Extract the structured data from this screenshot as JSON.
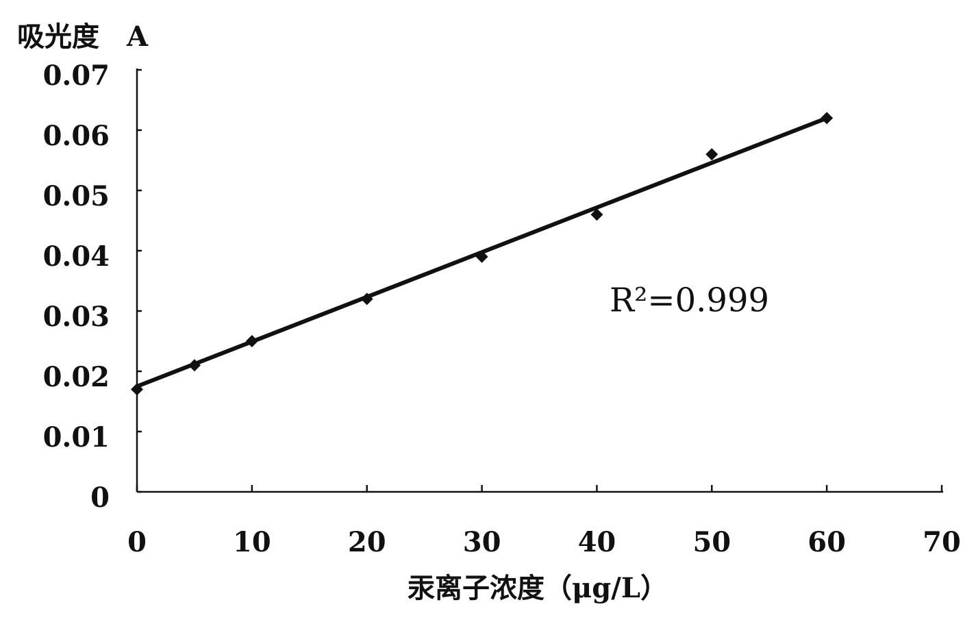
{
  "chart_data": {
    "type": "scatter",
    "y_label": "吸光度　A",
    "x_label": "汞离子浓度（μg/L）",
    "annotation": "R²=0.999",
    "x": [
      0,
      5,
      10,
      20,
      30,
      40,
      50,
      60
    ],
    "series": [
      {
        "color": "#111111",
        "values": [
          0.017,
          0.021,
          0.025,
          0.032,
          0.039,
          0.046,
          0.056,
          0.062
        ]
      }
    ],
    "trend_line": {
      "x": [
        0,
        60
      ],
      "y": [
        0.0175,
        0.062
      ],
      "color": "#111111"
    },
    "xlim": [
      0,
      70
    ],
    "xticks": [
      0,
      10,
      20,
      30,
      40,
      50,
      60,
      70
    ],
    "ylim": [
      0,
      0.07
    ],
    "yticks": [
      0,
      0.01,
      0.02,
      0.03,
      0.04,
      0.05,
      0.06,
      0.07
    ]
  }
}
